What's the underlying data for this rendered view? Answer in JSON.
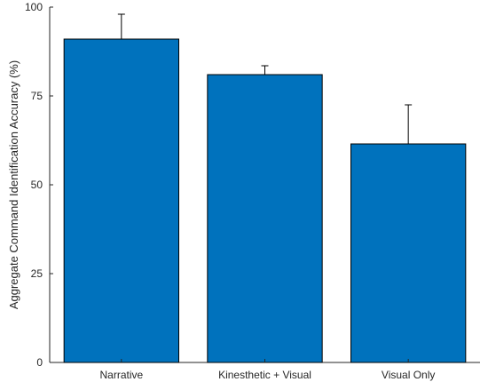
{
  "chart_data": {
    "type": "bar",
    "categories": [
      "Narrative",
      "Kinesthetic + Visual",
      "Visual Only"
    ],
    "values": [
      91,
      81,
      61.5
    ],
    "error_upper": [
      98,
      83.5,
      72.5
    ],
    "ylabel": "Aggregate Command Identification Accuracy (%)",
    "xlabel": "",
    "title": "",
    "ylim": [
      0,
      100
    ],
    "yticks": [
      0,
      25,
      50,
      75,
      100
    ],
    "grid": false,
    "bar_color": "#0072BD",
    "bar_edge_color": "#000000"
  }
}
